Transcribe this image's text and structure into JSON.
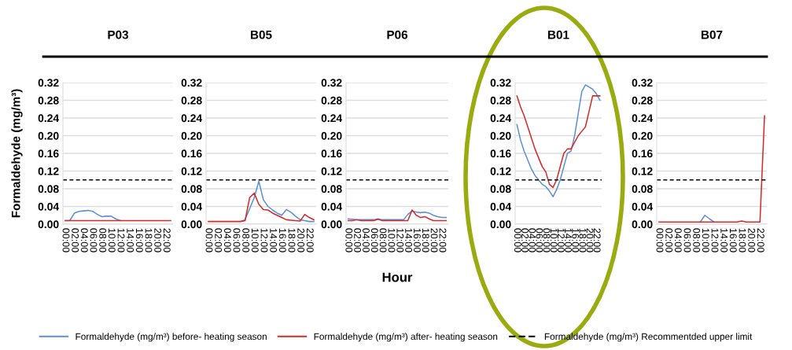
{
  "chart_data": [
    {
      "type": "line",
      "title": "P03",
      "ylabel": "Formaldehyde (mg/m³)",
      "legend": "bottom",
      "grid": "y",
      "categories": [
        "00:00",
        null,
        "02:00",
        null,
        "04:00",
        null,
        "06:00",
        null,
        "08:00",
        null,
        "10:00",
        null,
        "12:00",
        null,
        "14:00",
        null,
        "16:00",
        null,
        "18:00",
        null,
        "20:00",
        null,
        "22:00",
        null
      ],
      "ylim": [
        0,
        0.32
      ],
      "yticks": [
        {
          "value": 0,
          "label": "0.00"
        },
        {
          "value": 0.04,
          "label": "0.04"
        },
        {
          "value": 0.08,
          "label": "0.08"
        },
        {
          "value": 0.12,
          "label": "0.12"
        },
        {
          "value": 0.16,
          "label": "0.16"
        },
        {
          "value": 0.2,
          "label": "0.20"
        },
        {
          "value": 0.24,
          "label": "0.24"
        },
        {
          "value": 0.28,
          "label": "0.28"
        },
        {
          "value": 0.32,
          "label": "0.32"
        }
      ],
      "series": [
        {
          "name": "Formaldehyde (mg/m³) before- heating season",
          "color": "#5b8fd6",
          "values": [
            0.008,
            0.008,
            0.025,
            0.029,
            0.03,
            0.031,
            0.029,
            0.022,
            0.017,
            0.018,
            0.018,
            0.012,
            0.008,
            null,
            null,
            null,
            null,
            null,
            null,
            null,
            null,
            null,
            null,
            null
          ]
        },
        {
          "name": "Formaldehyde (mg/m³) after- heating season",
          "color": "#d62a2a",
          "values": [
            0.008,
            0.008,
            0.008,
            0.008,
            0.008,
            0.008,
            0.008,
            0.008,
            0.008,
            0.008,
            0.008,
            0.008,
            0.008,
            0.008,
            0.008,
            0.008,
            0.008,
            0.008,
            0.008,
            0.008,
            0.008,
            0.008,
            0.008,
            0.008
          ]
        }
      ],
      "ref_lines": [
        {
          "axis": "y",
          "value": 0.1,
          "label": "Formaldehyde (mg/m³) Recommentded upper limit",
          "color": "#000000",
          "line_style": "dashed"
        }
      ]
    },
    {
      "type": "line",
      "title": "B05",
      "grid": "y",
      "categories": [
        "00:00",
        null,
        "02:00",
        null,
        "04:00",
        null,
        "06:00",
        null,
        "08:00",
        null,
        "10:00",
        null,
        "12:00",
        null,
        "14:00",
        null,
        "16:00",
        null,
        "18:00",
        null,
        "20:00",
        null,
        "22:00",
        null
      ],
      "ylim": [
        0,
        0.32
      ],
      "yticks": [
        {
          "value": 0,
          "label": "0.00"
        },
        {
          "value": 0.04,
          "label": "0.04"
        },
        {
          "value": 0.08,
          "label": "0.08"
        },
        {
          "value": 0.12,
          "label": "0.12"
        },
        {
          "value": 0.16,
          "label": "0.16"
        },
        {
          "value": 0.2,
          "label": "0.20"
        },
        {
          "value": 0.24,
          "label": "0.24"
        },
        {
          "value": 0.28,
          "label": "0.28"
        },
        {
          "value": 0.32,
          "label": "0.32"
        }
      ],
      "series": [
        {
          "color": "#5b8fd6",
          "values": [
            null,
            null,
            null,
            null,
            null,
            null,
            null,
            0.006,
            0.01,
            0.035,
            0.06,
            0.097,
            0.055,
            0.04,
            0.032,
            0.025,
            0.02,
            0.033,
            0.027,
            0.018,
            0.01,
            0.008,
            0.006,
            0.006
          ]
        },
        {
          "color": "#d62a2a",
          "values": [
            0.006,
            0.006,
            0.006,
            0.006,
            0.006,
            0.006,
            0.006,
            0.006,
            0.008,
            0.06,
            0.07,
            0.045,
            0.033,
            0.032,
            0.025,
            0.02,
            0.015,
            0.01,
            0.009,
            0.008,
            0.007,
            0.022,
            0.015,
            0.01
          ]
        }
      ],
      "ref_lines": [
        {
          "axis": "y",
          "value": 0.1,
          "color": "#000000",
          "line_style": "dashed"
        }
      ]
    },
    {
      "type": "line",
      "title": "P06",
      "xlabel": "Hour",
      "grid": "y",
      "categories": [
        "00:00",
        null,
        "02:00",
        null,
        "04:00",
        null,
        "06:00",
        null,
        "08:00",
        null,
        "10:00",
        null,
        "12:00",
        null,
        "14:00",
        null,
        "16:00",
        null,
        "18:00",
        null,
        "20:00",
        null,
        "22:00",
        null
      ],
      "ylim": [
        0,
        0.32
      ],
      "yticks": [
        {
          "value": 0,
          "label": "0.00"
        },
        {
          "value": 0.04,
          "label": "0.04"
        },
        {
          "value": 0.08,
          "label": "0.08"
        },
        {
          "value": 0.12,
          "label": "0.12"
        },
        {
          "value": 0.16,
          "label": "0.16"
        },
        {
          "value": 0.2,
          "label": "0.20"
        },
        {
          "value": 0.24,
          "label": "0.24"
        },
        {
          "value": 0.28,
          "label": "0.28"
        },
        {
          "value": 0.32,
          "label": "0.32"
        }
      ],
      "series": [
        {
          "color": "#5b8fd6",
          "values": [
            0.012,
            0.011,
            0.01,
            0.01,
            0.01,
            0.01,
            0.01,
            0.012,
            0.01,
            0.01,
            0.01,
            0.01,
            0.01,
            0.01,
            0.022,
            0.03,
            0.027,
            0.026,
            0.027,
            0.025,
            0.02,
            0.017,
            0.015,
            0.015
          ]
        },
        {
          "color": "#d62a2a",
          "values": [
            0.008,
            0.008,
            0.01,
            0.008,
            0.008,
            0.008,
            0.008,
            0.011,
            0.008,
            0.008,
            0.008,
            0.008,
            0.008,
            0.008,
            0.008,
            0.032,
            0.02,
            0.015,
            0.017,
            0.012,
            0.008,
            0.008,
            0.008,
            0.008
          ]
        }
      ],
      "ref_lines": [
        {
          "axis": "y",
          "value": 0.1,
          "color": "#000000",
          "line_style": "dashed"
        }
      ]
    },
    {
      "type": "line",
      "title": "B01",
      "grid": "y",
      "categories": [
        "00:00",
        null,
        "02:00",
        null,
        "04:00",
        null,
        "06:00",
        null,
        "08:00",
        null,
        "10:00",
        null,
        "12:00",
        null,
        "14:00",
        null,
        "16:00",
        null,
        "18:00",
        null,
        "20:00",
        null,
        "22:00",
        null
      ],
      "ylim": [
        0,
        0.32
      ],
      "yticks": [
        {
          "value": 0,
          "label": "0.00"
        },
        {
          "value": 0.04,
          "label": "0.04"
        },
        {
          "value": 0.08,
          "label": "0.08"
        },
        {
          "value": 0.12,
          "label": "0.12"
        },
        {
          "value": 0.16,
          "label": "0.16"
        },
        {
          "value": 0.2,
          "label": "0.20"
        },
        {
          "value": 0.24,
          "label": "0.24"
        },
        {
          "value": 0.28,
          "label": "0.28"
        },
        {
          "value": 0.32,
          "label": "0.32"
        }
      ],
      "series": [
        {
          "color": "#5b8fd6",
          "values": [
            0.225,
            0.19,
            0.165,
            0.145,
            0.125,
            0.11,
            0.1,
            0.09,
            0.085,
            0.075,
            0.062,
            0.078,
            0.1,
            0.13,
            0.16,
            0.165,
            0.2,
            0.25,
            0.3,
            0.315,
            0.31,
            0.305,
            0.295,
            0.28
          ]
        },
        {
          "color": "#d62a2a",
          "values": [
            0.29,
            0.265,
            0.245,
            0.22,
            0.195,
            0.17,
            0.15,
            0.13,
            0.118,
            0.09,
            0.083,
            0.1,
            0.13,
            0.16,
            0.17,
            0.17,
            0.185,
            0.2,
            0.21,
            0.22,
            0.255,
            0.29,
            0.29,
            0.29
          ]
        }
      ],
      "ref_lines": [
        {
          "axis": "y",
          "value": 0.1,
          "color": "#000000",
          "line_style": "dashed"
        }
      ]
    },
    {
      "type": "line",
      "title": "B07",
      "grid": "y",
      "categories": [
        "00:00",
        null,
        "02:00",
        null,
        "04:00",
        null,
        "06:00",
        null,
        "08:00",
        null,
        "10:00",
        null,
        "12:00",
        null,
        "14:00",
        null,
        "16:00",
        null,
        "18:00",
        null,
        "20:00",
        null,
        "22:00",
        null
      ],
      "ylim": [
        0,
        0.32
      ],
      "yticks": [
        {
          "value": 0,
          "label": "0.00"
        },
        {
          "value": 0.04,
          "label": "0.04"
        },
        {
          "value": 0.08,
          "label": "0.08"
        },
        {
          "value": 0.12,
          "label": "0.12"
        },
        {
          "value": 0.16,
          "label": "0.16"
        },
        {
          "value": 0.2,
          "label": "0.20"
        },
        {
          "value": 0.24,
          "label": "0.24"
        },
        {
          "value": 0.28,
          "label": "0.28"
        },
        {
          "value": 0.32,
          "label": "0.32"
        }
      ],
      "series": [
        {
          "color": "#5b8fd6",
          "values": [
            null,
            null,
            null,
            null,
            null,
            null,
            null,
            null,
            null,
            0.005,
            0.02,
            0.012,
            0.005,
            null,
            null,
            null,
            null,
            null,
            null,
            null,
            null,
            null,
            null,
            null
          ]
        },
        {
          "color": "#d62a2a",
          "values": [
            0.005,
            0.005,
            0.005,
            0.005,
            0.005,
            0.005,
            0.005,
            0.005,
            0.005,
            0.005,
            0.005,
            0.005,
            0.005,
            0.005,
            0.005,
            0.005,
            0.005,
            0.005,
            0.007,
            0.005,
            0.005,
            0.005,
            0.005,
            0.245
          ]
        }
      ],
      "ref_lines": [
        {
          "axis": "y",
          "value": 0.1,
          "color": "#000000",
          "line_style": "dashed"
        }
      ]
    }
  ]
}
